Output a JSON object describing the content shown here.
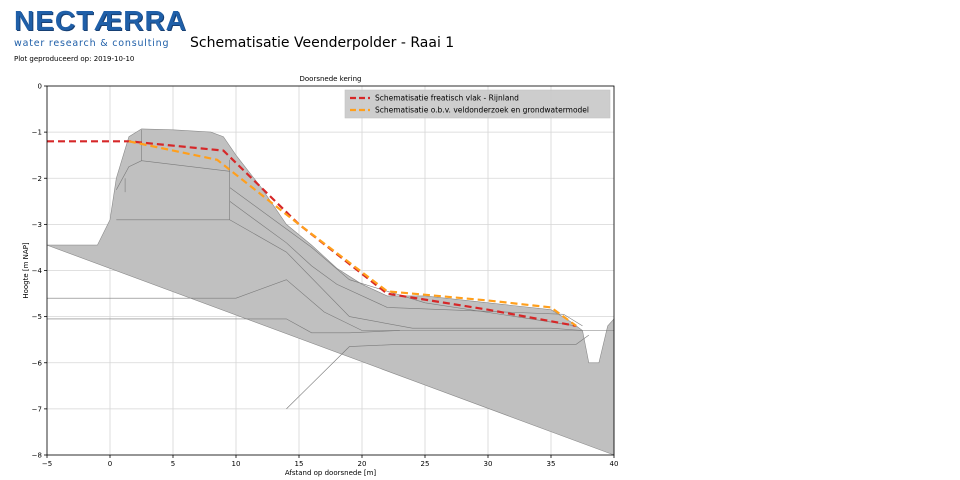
{
  "logo": {
    "name": "NECTÆRRA",
    "tagline": "water research & consulting"
  },
  "plot_date": "Plot geproduceerd op: 2019-10-10",
  "header": {
    "title": "Schematisatie Veenderpolder - Raai  1"
  },
  "chart_data": {
    "type": "line",
    "title": "Doorsnede kering",
    "xlabel": "Afstand op doorsnede [m]",
    "ylabel": "Hoogte [m NAP]",
    "xlim": [
      -5,
      40
    ],
    "ylim": [
      -8,
      0
    ],
    "xticks": [
      -5,
      0,
      5,
      10,
      15,
      20,
      25,
      30,
      35,
      40
    ],
    "yticks": [
      0,
      -1,
      -2,
      -3,
      -4,
      -5,
      -6,
      -7,
      -8
    ],
    "xtick_labels": [
      "−5",
      "0",
      "5",
      "10",
      "15",
      "20",
      "25",
      "30",
      "35",
      "40"
    ],
    "ytick_labels": [
      "0",
      "−1",
      "−2",
      "−3",
      "−4",
      "−5",
      "−6",
      "−7",
      "−8"
    ],
    "grid": true,
    "legend_position": "top-right",
    "fill_color": "#c0c0c0",
    "layer_line_color": "#7a7a7a",
    "cross_section": {
      "x": [
        -5,
        -1,
        0,
        0.5,
        1.5,
        2.5,
        5,
        8,
        9,
        10,
        12,
        14,
        16,
        18,
        20,
        22,
        25,
        30,
        35,
        36.5,
        37.5,
        38,
        38.8,
        39.5,
        40,
        40
      ],
      "y": [
        -3.45,
        -3.45,
        -2.9,
        -2.0,
        -1.1,
        -0.93,
        -0.95,
        -1.0,
        -1.1,
        -1.5,
        -2.2,
        -3.0,
        -3.45,
        -3.95,
        -4.3,
        -4.55,
        -4.55,
        -4.7,
        -4.85,
        -5.1,
        -5.3,
        -6.0,
        -6.0,
        -5.2,
        -5.05,
        -8
      ]
    },
    "layer_boundaries": [
      {
        "x": [
          -5,
          10,
          14,
          17,
          20,
          40
        ],
        "y": [
          -4.6,
          -4.6,
          -4.2,
          -4.9,
          -5.3,
          -5.3
        ]
      },
      {
        "x": [
          -5,
          14,
          16,
          19,
          23
        ],
        "y": [
          -5.05,
          -5.05,
          -5.35,
          -5.35,
          -5.3
        ]
      },
      {
        "x": [
          14,
          19,
          23,
          37,
          38
        ],
        "y": [
          -7.0,
          -5.65,
          -5.6,
          -5.6,
          -5.4
        ]
      },
      {
        "x": [
          0.5,
          9.5,
          14,
          19,
          24,
          35,
          37.5
        ],
        "y": [
          -2.9,
          -2.9,
          -3.6,
          -5.0,
          -5.25,
          -5.25,
          -5.3
        ]
      },
      {
        "x": [
          9.5,
          12,
          14,
          16,
          18,
          22,
          36,
          37.5
        ],
        "y": [
          -2.5,
          -3.0,
          -3.4,
          -3.9,
          -4.3,
          -4.8,
          -4.95,
          -5.2
        ]
      },
      {
        "x": [
          9.5,
          13,
          16,
          19,
          25,
          37
        ],
        "y": [
          -2.2,
          -2.9,
          -3.5,
          -4.2,
          -4.7,
          -5.2
        ]
      },
      {
        "x": [
          0.5,
          1.5,
          2.5,
          9.5
        ],
        "y": [
          -2.25,
          -1.75,
          -1.62,
          -1.85
        ]
      },
      {
        "x": [
          2.5,
          2.5
        ],
        "y": [
          -0.95,
          -1.62
        ]
      },
      {
        "x": [
          9.5,
          9.5
        ],
        "y": [
          -1.6,
          -2.9
        ]
      },
      {
        "x": [
          1.2,
          1.2
        ],
        "y": [
          -2.0,
          -2.3
        ]
      }
    ],
    "series": [
      {
        "name": "Schematisatie freatisch vlak - Rijnland",
        "color": "#d62728",
        "x": [
          -5,
          1.5,
          9,
          15,
          22,
          30,
          37
        ],
        "y": [
          -1.2,
          -1.2,
          -1.4,
          -3.0,
          -4.5,
          -4.85,
          -5.2
        ]
      },
      {
        "name": "Schematisatie o.b.v. veldonderzoek en grondwatermodel",
        "color": "#ff9f1c",
        "x": [
          1.5,
          8.5,
          15,
          22,
          30,
          35,
          37
        ],
        "y": [
          -1.2,
          -1.6,
          -3.0,
          -4.45,
          -4.65,
          -4.8,
          -5.2
        ]
      }
    ]
  }
}
